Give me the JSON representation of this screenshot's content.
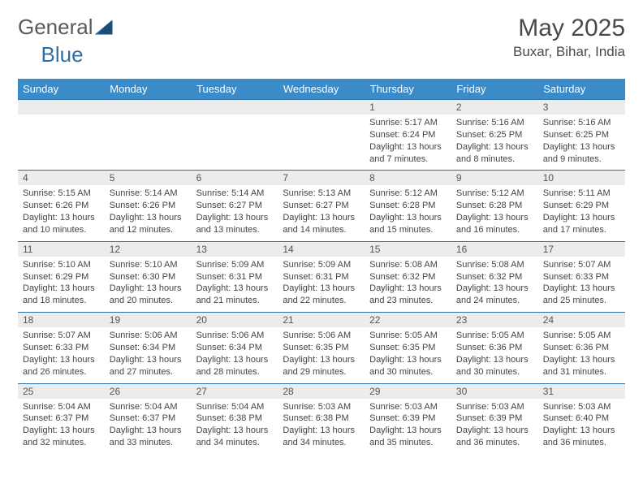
{
  "logo": {
    "part1": "General",
    "part2": "Blue"
  },
  "title": "May 2025",
  "location": "Buxar, Bihar, India",
  "colors": {
    "header_bg": "#3b8bc9",
    "border": "#2f6fa8",
    "daynum_bg": "#ececec",
    "text": "#444444"
  },
  "weekdays": [
    "Sunday",
    "Monday",
    "Tuesday",
    "Wednesday",
    "Thursday",
    "Friday",
    "Saturday"
  ],
  "weeks": [
    {
      "nums": [
        "",
        "",
        "",
        "",
        "1",
        "2",
        "3"
      ],
      "cells": [
        null,
        null,
        null,
        null,
        {
          "sr": "5:17 AM",
          "ss": "6:24 PM",
          "dl": "13 hours and 7 minutes."
        },
        {
          "sr": "5:16 AM",
          "ss": "6:25 PM",
          "dl": "13 hours and 8 minutes."
        },
        {
          "sr": "5:16 AM",
          "ss": "6:25 PM",
          "dl": "13 hours and 9 minutes."
        }
      ]
    },
    {
      "nums": [
        "4",
        "5",
        "6",
        "7",
        "8",
        "9",
        "10"
      ],
      "cells": [
        {
          "sr": "5:15 AM",
          "ss": "6:26 PM",
          "dl": "13 hours and 10 minutes."
        },
        {
          "sr": "5:14 AM",
          "ss": "6:26 PM",
          "dl": "13 hours and 12 minutes."
        },
        {
          "sr": "5:14 AM",
          "ss": "6:27 PM",
          "dl": "13 hours and 13 minutes."
        },
        {
          "sr": "5:13 AM",
          "ss": "6:27 PM",
          "dl": "13 hours and 14 minutes."
        },
        {
          "sr": "5:12 AM",
          "ss": "6:28 PM",
          "dl": "13 hours and 15 minutes."
        },
        {
          "sr": "5:12 AM",
          "ss": "6:28 PM",
          "dl": "13 hours and 16 minutes."
        },
        {
          "sr": "5:11 AM",
          "ss": "6:29 PM",
          "dl": "13 hours and 17 minutes."
        }
      ]
    },
    {
      "nums": [
        "11",
        "12",
        "13",
        "14",
        "15",
        "16",
        "17"
      ],
      "cells": [
        {
          "sr": "5:10 AM",
          "ss": "6:29 PM",
          "dl": "13 hours and 18 minutes."
        },
        {
          "sr": "5:10 AM",
          "ss": "6:30 PM",
          "dl": "13 hours and 20 minutes."
        },
        {
          "sr": "5:09 AM",
          "ss": "6:31 PM",
          "dl": "13 hours and 21 minutes."
        },
        {
          "sr": "5:09 AM",
          "ss": "6:31 PM",
          "dl": "13 hours and 22 minutes."
        },
        {
          "sr": "5:08 AM",
          "ss": "6:32 PM",
          "dl": "13 hours and 23 minutes."
        },
        {
          "sr": "5:08 AM",
          "ss": "6:32 PM",
          "dl": "13 hours and 24 minutes."
        },
        {
          "sr": "5:07 AM",
          "ss": "6:33 PM",
          "dl": "13 hours and 25 minutes."
        }
      ]
    },
    {
      "nums": [
        "18",
        "19",
        "20",
        "21",
        "22",
        "23",
        "24"
      ],
      "cells": [
        {
          "sr": "5:07 AM",
          "ss": "6:33 PM",
          "dl": "13 hours and 26 minutes."
        },
        {
          "sr": "5:06 AM",
          "ss": "6:34 PM",
          "dl": "13 hours and 27 minutes."
        },
        {
          "sr": "5:06 AM",
          "ss": "6:34 PM",
          "dl": "13 hours and 28 minutes."
        },
        {
          "sr": "5:06 AM",
          "ss": "6:35 PM",
          "dl": "13 hours and 29 minutes."
        },
        {
          "sr": "5:05 AM",
          "ss": "6:35 PM",
          "dl": "13 hours and 30 minutes."
        },
        {
          "sr": "5:05 AM",
          "ss": "6:36 PM",
          "dl": "13 hours and 30 minutes."
        },
        {
          "sr": "5:05 AM",
          "ss": "6:36 PM",
          "dl": "13 hours and 31 minutes."
        }
      ]
    },
    {
      "nums": [
        "25",
        "26",
        "27",
        "28",
        "29",
        "30",
        "31"
      ],
      "cells": [
        {
          "sr": "5:04 AM",
          "ss": "6:37 PM",
          "dl": "13 hours and 32 minutes."
        },
        {
          "sr": "5:04 AM",
          "ss": "6:37 PM",
          "dl": "13 hours and 33 minutes."
        },
        {
          "sr": "5:04 AM",
          "ss": "6:38 PM",
          "dl": "13 hours and 34 minutes."
        },
        {
          "sr": "5:03 AM",
          "ss": "6:38 PM",
          "dl": "13 hours and 34 minutes."
        },
        {
          "sr": "5:03 AM",
          "ss": "6:39 PM",
          "dl": "13 hours and 35 minutes."
        },
        {
          "sr": "5:03 AM",
          "ss": "6:39 PM",
          "dl": "13 hours and 36 minutes."
        },
        {
          "sr": "5:03 AM",
          "ss": "6:40 PM",
          "dl": "13 hours and 36 minutes."
        }
      ]
    }
  ],
  "labels": {
    "sunrise": "Sunrise: ",
    "sunset": "Sunset: ",
    "daylight": "Daylight: "
  }
}
